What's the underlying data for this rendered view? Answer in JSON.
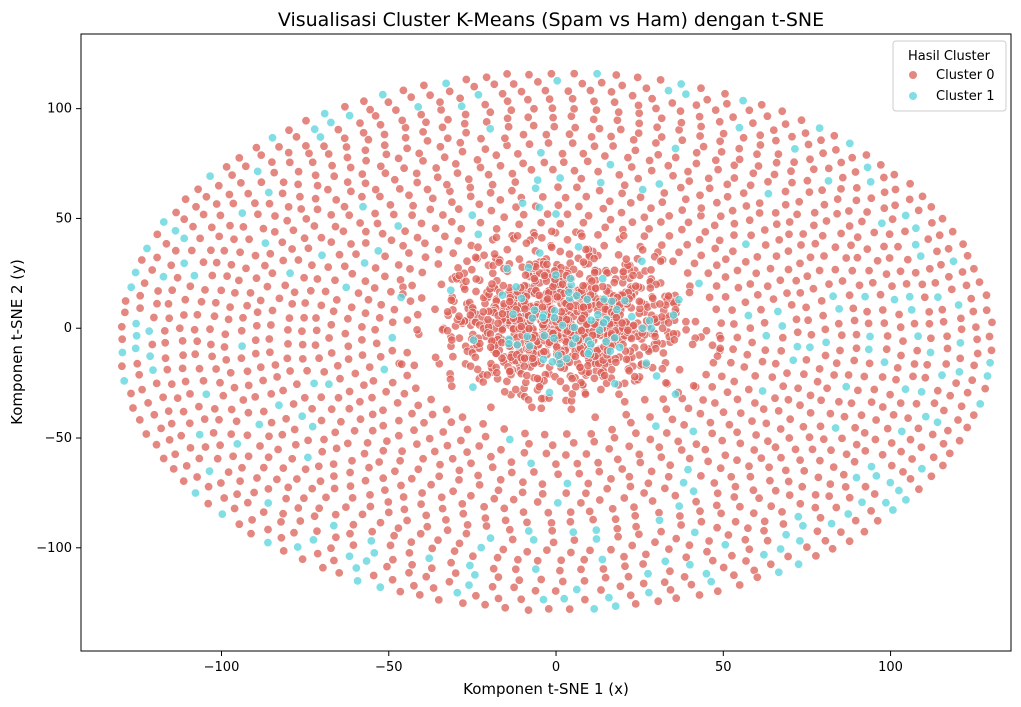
{
  "chart_data": {
    "type": "scatter",
    "title": "Visualisasi Cluster K-Means (Spam vs Ham) dengan t-SNE",
    "xlabel": "Komponen t-SNE 1 (x)",
    "ylabel": "Komponen t-SNE 2 (y)",
    "xlim": [
      -142,
      136
    ],
    "ylim": [
      -147,
      134
    ],
    "xticks": [
      -100,
      -50,
      0,
      50,
      100
    ],
    "yticks": [
      -100,
      -50,
      0,
      50,
      100
    ],
    "xtick_labels": [
      "−100",
      "−50",
      "0",
      "50",
      "100"
    ],
    "ytick_labels": [
      "−100",
      "−50",
      "0",
      "50",
      "100"
    ],
    "grid": false,
    "legend": {
      "title": "Hasil Cluster",
      "placement": "top-right",
      "entries": [
        "Cluster 0",
        "Cluster 1"
      ]
    },
    "series": [
      {
        "name": "Cluster 0",
        "color": "#db5f57",
        "description_points": "dense core around the origin plus concentric spiral rings out to about |x|=128, |y|=120",
        "sample_points": [
          [
            0,
            0
          ],
          [
            5,
            3
          ],
          [
            -8,
            10
          ],
          [
            12,
            -6
          ],
          [
            -3,
            -14
          ],
          [
            20,
            8
          ],
          [
            -22,
            2
          ],
          [
            28,
            -12
          ],
          [
            -30,
            24
          ],
          [
            35,
            18
          ],
          [
            -40,
            -20
          ],
          [
            45,
            5
          ],
          [
            -48,
            10
          ],
          [
            40,
            -25
          ],
          [
            -15,
            40
          ],
          [
            2,
            65
          ],
          [
            -5,
            -40
          ],
          [
            18,
            -42
          ],
          [
            -60,
            80
          ],
          [
            70,
            90
          ],
          [
            -100,
            40
          ],
          [
            110,
            -40
          ],
          [
            -120,
            -20
          ],
          [
            125,
            10
          ],
          [
            0,
            -130
          ],
          [
            0,
            120
          ],
          [
            -90,
            -100
          ],
          [
            95,
            -95
          ],
          [
            -128,
            5
          ],
          [
            -70,
            -110
          ],
          [
            60,
            115
          ],
          [
            -50,
            100
          ]
        ]
      },
      {
        "name": "Cluster 1",
        "color": "#57d3db",
        "description_points": "scattered among the rings, denser at the outer right and lower edges",
        "sample_points": [
          [
            -5,
            55
          ],
          [
            0,
            52
          ],
          [
            -10,
            57
          ],
          [
            -12,
            20
          ],
          [
            3,
            0
          ],
          [
            10,
            12
          ],
          [
            -18,
            -25
          ],
          [
            -8,
            -45
          ],
          [
            35,
            0
          ],
          [
            -42,
            25
          ],
          [
            100,
            40
          ],
          [
            112,
            20
          ],
          [
            120,
            -10
          ],
          [
            118,
            -35
          ],
          [
            95,
            -80
          ],
          [
            50,
            -115
          ],
          [
            -100,
            60
          ],
          [
            -105,
            -70
          ],
          [
            -120,
            -48
          ],
          [
            -85,
            80
          ],
          [
            10,
            117
          ],
          [
            28,
            111
          ],
          [
            62,
            104
          ],
          [
            -2,
            91
          ],
          [
            -30,
            97
          ],
          [
            20,
            -132
          ],
          [
            -15,
            -132
          ],
          [
            70,
            -113
          ],
          [
            -80,
            -90
          ],
          [
            110,
            -25
          ],
          [
            125,
            -15
          ]
        ]
      }
    ],
    "approx_total_points": 4000
  }
}
